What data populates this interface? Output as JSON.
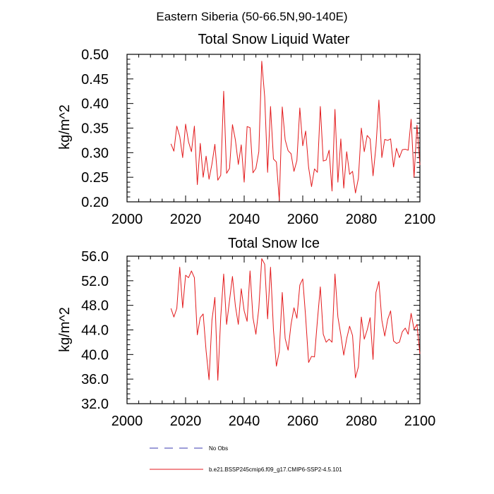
{
  "suptitle": "Eastern Siberia (50-66.5N,90-140E)",
  "legend": {
    "obs_label": "No Obs",
    "obs_color": "#3b3bb0",
    "model_label": "b.e21.BSSP245cmip6.f09_g17.CMIP6-SSP2-4.5.101",
    "model_color": "#e31a1c"
  },
  "chart_data": [
    {
      "type": "line",
      "title": "Total Snow Liquid Water",
      "xlabel": "",
      "ylabel": "kg/m^2",
      "xlim": [
        2000,
        2100
      ],
      "ylim": [
        0.2,
        0.5
      ],
      "xticks": [
        2000,
        2020,
        2040,
        2060,
        2080,
        2100
      ],
      "xtick_labels": [
        "2000",
        "2020",
        "2040",
        "2060",
        "2080",
        "2100"
      ],
      "yticks": [
        0.2,
        0.25,
        0.3,
        0.35,
        0.4,
        0.45,
        0.5
      ],
      "ytick_labels": [
        "0.20",
        "0.25",
        "0.30",
        "0.35",
        "0.40",
        "0.45",
        "0.50"
      ],
      "grid": false,
      "series": [
        {
          "name": "b.e21.BSSP245cmip6.f09_g17.CMIP6-SSP2-4.5.101",
          "x_start": 2015,
          "x_step": 1,
          "values": [
            0.318,
            0.303,
            0.354,
            0.333,
            0.29,
            0.358,
            0.322,
            0.302,
            0.354,
            0.235,
            0.319,
            0.25,
            0.293,
            0.246,
            0.277,
            0.317,
            0.244,
            0.254,
            0.425,
            0.258,
            0.268,
            0.357,
            0.326,
            0.276,
            0.316,
            0.24,
            0.353,
            0.351,
            0.259,
            0.268,
            0.302,
            0.486,
            0.414,
            0.26,
            0.394,
            0.287,
            0.281,
            0.203,
            0.393,
            0.326,
            0.304,
            0.298,
            0.262,
            0.284,
            0.391,
            0.314,
            0.344,
            0.27,
            0.231,
            0.267,
            0.26,
            0.394,
            0.283,
            0.285,
            0.305,
            0.222,
            0.388,
            0.24,
            0.328,
            0.228,
            0.302,
            0.256,
            0.262,
            0.218,
            0.248,
            0.35,
            0.302,
            0.335,
            0.328,
            0.253,
            0.313,
            0.407,
            0.29,
            0.327,
            0.325,
            0.328,
            0.271,
            0.309,
            0.29,
            0.306,
            0.307,
            0.305,
            0.368,
            0.25,
            0.356,
            0.275
          ]
        }
      ]
    },
    {
      "type": "line",
      "title": "Total Snow Ice",
      "xlabel": "",
      "ylabel": "kg/m^2",
      "xlim": [
        2000,
        2100
      ],
      "ylim": [
        32.0,
        56.0
      ],
      "xticks": [
        2000,
        2020,
        2040,
        2060,
        2080,
        2100
      ],
      "xtick_labels": [
        "2000",
        "2020",
        "2040",
        "2060",
        "2080",
        "2100"
      ],
      "yticks": [
        32.0,
        36.0,
        40.0,
        44.0,
        48.0,
        52.0,
        56.0
      ],
      "ytick_labels": [
        "32.0",
        "36.0",
        "40.0",
        "44.0",
        "48.0",
        "52.0",
        "56.0"
      ],
      "grid": false,
      "series": [
        {
          "name": "b.e21.BSSP245cmip6.f09_g17.CMIP6-SSP2-4.5.101",
          "x_start": 2015,
          "x_step": 1,
          "values": [
            47.5,
            46.1,
            47.5,
            54.2,
            47.6,
            52.9,
            52.5,
            53.6,
            52.5,
            43.2,
            46.0,
            46.6,
            40.6,
            35.9,
            45.6,
            49.3,
            35.8,
            46.1,
            53.1,
            44.9,
            48.8,
            52.7,
            47.9,
            44.9,
            50.7,
            47.1,
            45.4,
            53.6,
            46.0,
            43.3,
            47.5,
            55.6,
            54.7,
            45.8,
            54.2,
            44.0,
            38.1,
            40.5,
            50.1,
            42.6,
            40.7,
            44.9,
            47.6,
            45.9,
            51.3,
            52.3,
            46.0,
            38.7,
            39.7,
            39.6,
            45.5,
            51.0,
            43.3,
            42.0,
            42.5,
            42.0,
            53.1,
            46.1,
            43.2,
            39.9,
            42.6,
            44.6,
            43.1,
            36.2,
            38.0,
            46.1,
            42.5,
            44.0,
            46.0,
            39.2,
            50.1,
            51.9,
            45.6,
            43.0,
            45.7,
            47.1,
            42.2,
            41.8,
            42.0,
            43.7,
            44.3,
            43.3,
            46.7,
            44.1,
            44.9,
            40.1
          ]
        }
      ]
    }
  ]
}
